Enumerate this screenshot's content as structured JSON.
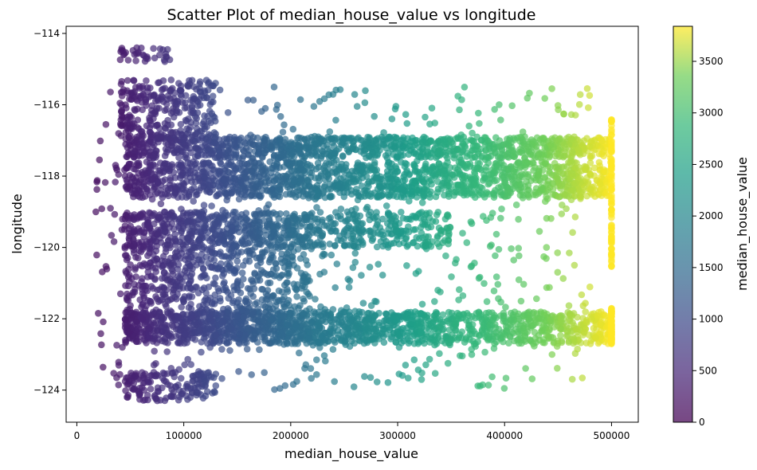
{
  "chart_data": {
    "type": "scatter",
    "title": "Scatter Plot of median_house_value vs longitude",
    "xlabel": "median_house_value",
    "ylabel": "longitude",
    "xlim": [
      -10000,
      525000
    ],
    "ylim": [
      -124.9,
      -113.8
    ],
    "xticks": [
      0,
      100000,
      200000,
      300000,
      400000,
      500000
    ],
    "xtick_labels": [
      "0",
      "100000",
      "200000",
      "300000",
      "400000",
      "500000"
    ],
    "yticks": [
      -124,
      -122,
      -120,
      -118,
      -116,
      -114
    ],
    "ytick_labels": [
      "−124",
      "−122",
      "−120",
      "−118",
      "−116",
      "−114"
    ],
    "grid": false,
    "colormap": "viridis",
    "marker_alpha": 0.7,
    "colorbar": {
      "label": "median_house_value",
      "range": [
        0,
        3840
      ],
      "ticks": [
        0,
        500,
        1000,
        1500,
        2000,
        2500,
        3000,
        3500
      ],
      "tick_labels": [
        "0",
        "500",
        "1000",
        "1500",
        "2000",
        "2500",
        "3000",
        "3500"
      ]
    },
    "point_groups": [
      {
        "xrange": [
          45000,
          500000
        ],
        "yrange": [
          -117.5,
          -116.9
        ],
        "count": 900,
        "description": "dense band"
      },
      {
        "xrange": [
          45000,
          500000
        ],
        "yrange": [
          -118.6,
          -117.6
        ],
        "count": 1300,
        "description": "dense band"
      },
      {
        "xrange": [
          45000,
          500000
        ],
        "yrange": [
          -122.7,
          -121.8
        ],
        "count": 1300,
        "description": "dense band"
      },
      {
        "xrange": [
          45000,
          220000
        ],
        "yrange": [
          -122.5,
          -119.0
        ],
        "count": 900
      },
      {
        "xrange": [
          45000,
          350000
        ],
        "yrange": [
          -120.0,
          -119.0
        ],
        "count": 500
      },
      {
        "xrange": [
          40000,
          130000
        ],
        "yrange": [
          -117.0,
          -115.3
        ],
        "count": 260
      },
      {
        "xrange": [
          45000,
          130000
        ],
        "yrange": [
          -124.3,
          -123.5
        ],
        "count": 150
      },
      {
        "xrange": [
          40000,
          90000
        ],
        "yrange": [
          -114.8,
          -114.4
        ],
        "count": 35
      },
      {
        "xrange": [
          15000,
          480000
        ],
        "yrange": [
          -124.0,
          -115.5
        ],
        "count": 700,
        "description": "sparse scatter"
      }
    ],
    "capped_column": {
      "x": 500001,
      "yranges": [
        [
          -122.7,
          -121.7
        ],
        [
          -120.7,
          -116.4
        ]
      ],
      "count": 170
    }
  }
}
